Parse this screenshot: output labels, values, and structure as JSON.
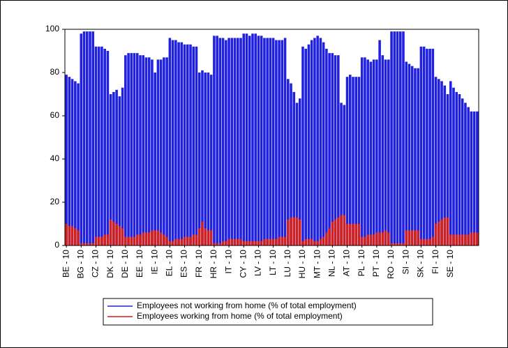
{
  "chart_data": {
    "type": "bar",
    "categories": [
      "BE - 10",
      null,
      null,
      null,
      null,
      "BG - 10",
      null,
      null,
      null,
      null,
      "CZ - 10",
      null,
      null,
      null,
      null,
      "DK - 10",
      null,
      null,
      null,
      null,
      "DE - 10",
      null,
      null,
      null,
      null,
      "EE - 10",
      null,
      null,
      null,
      null,
      "IE - 10",
      null,
      null,
      null,
      null,
      "EL - 10",
      null,
      null,
      null,
      null,
      "ES - 10",
      null,
      null,
      null,
      null,
      "FR - 10",
      null,
      null,
      null,
      null,
      "HR - 10",
      null,
      null,
      null,
      null,
      "IT - 10",
      null,
      null,
      null,
      null,
      "CY - 10",
      null,
      null,
      null,
      null,
      "LV - 10",
      null,
      null,
      null,
      null,
      "LT - 10",
      null,
      null,
      null,
      null,
      "LU - 10",
      null,
      null,
      null,
      null,
      "HU - 10",
      null,
      null,
      null,
      null,
      "MT - 10",
      null,
      null,
      null,
      null,
      "NL - 10",
      null,
      null,
      null,
      null,
      "AT - 10",
      null,
      null,
      null,
      null,
      "PL - 10",
      null,
      null,
      null,
      null,
      "PT - 10",
      null,
      null,
      null,
      null,
      "RO - 10",
      null,
      null,
      null,
      null,
      "SI - 10",
      null,
      null,
      null,
      null,
      "SK - 10",
      null,
      null,
      null,
      null,
      "FI - 10",
      null,
      null,
      null,
      null,
      "SE - 10",
      null,
      null,
      null,
      null,
      null,
      null,
      null,
      null,
      null
    ],
    "series": [
      {
        "name": "Employees not working from home (% of total employment)",
        "color": "#2020e0",
        "values": [
          79,
          78,
          77,
          76,
          75,
          98,
          99,
          99,
          99,
          99,
          92,
          92,
          92,
          91,
          90,
          70,
          71,
          72,
          69,
          73,
          88,
          89,
          89,
          89,
          89,
          88,
          88,
          87,
          87,
          86,
          80,
          86,
          86,
          87,
          87,
          96,
          95,
          95,
          94,
          94,
          93,
          93,
          93,
          92,
          92,
          80,
          81,
          80,
          80,
          79,
          97,
          97,
          96,
          96,
          95,
          96,
          96,
          96,
          96,
          96,
          98,
          98,
          97,
          98,
          98,
          97,
          97,
          96,
          96,
          96,
          96,
          95,
          95,
          95,
          96,
          77,
          75,
          71,
          66,
          68,
          92,
          91,
          93,
          95,
          96,
          97,
          96,
          94,
          91,
          89,
          89,
          88,
          88,
          66,
          65,
          78,
          79,
          78,
          78,
          78,
          87,
          87,
          86,
          85,
          86,
          86,
          95,
          88,
          86,
          86,
          99,
          99,
          99,
          99,
          99,
          85,
          84,
          83,
          82,
          82,
          92,
          92,
          91,
          91,
          91,
          78,
          77,
          76,
          74,
          70,
          76,
          73,
          71,
          70,
          68,
          66,
          64,
          62,
          62,
          62
        ]
      },
      {
        "name": "Employees working from home (% of total employment)",
        "color": "#d02020",
        "values": [
          10,
          9,
          9,
          8,
          7,
          1,
          1,
          1,
          1,
          1,
          4,
          4,
          4,
          5,
          5,
          12,
          11,
          10,
          9,
          8,
          4,
          4,
          4,
          4,
          5,
          5,
          6,
          6,
          6,
          7,
          7,
          7,
          6,
          5,
          4,
          2,
          2,
          3,
          3,
          3,
          4,
          4,
          4,
          5,
          5,
          8,
          11,
          8,
          7,
          7,
          1,
          1,
          1,
          2,
          2,
          3,
          3,
          3,
          3,
          3,
          2,
          2,
          2,
          2,
          2,
          2,
          2,
          3,
          3,
          3,
          3,
          3,
          4,
          4,
          4,
          12,
          13,
          13,
          13,
          12,
          2,
          3,
          3,
          3,
          2,
          2,
          3,
          4,
          6,
          8,
          11,
          12,
          13,
          14,
          14,
          10,
          10,
          10,
          10,
          10,
          4,
          4,
          5,
          5,
          5,
          6,
          6,
          6,
          7,
          6,
          1,
          1,
          1,
          1,
          1,
          7,
          7,
          7,
          7,
          7,
          3,
          3,
          3,
          3,
          4,
          10,
          11,
          12,
          13,
          13,
          5,
          5,
          5,
          5,
          5,
          5,
          5,
          6,
          6,
          6
        ]
      }
    ],
    "ylim": [
      0,
      100
    ],
    "yticks": [
      0,
      20,
      40,
      60,
      80,
      100
    ]
  }
}
